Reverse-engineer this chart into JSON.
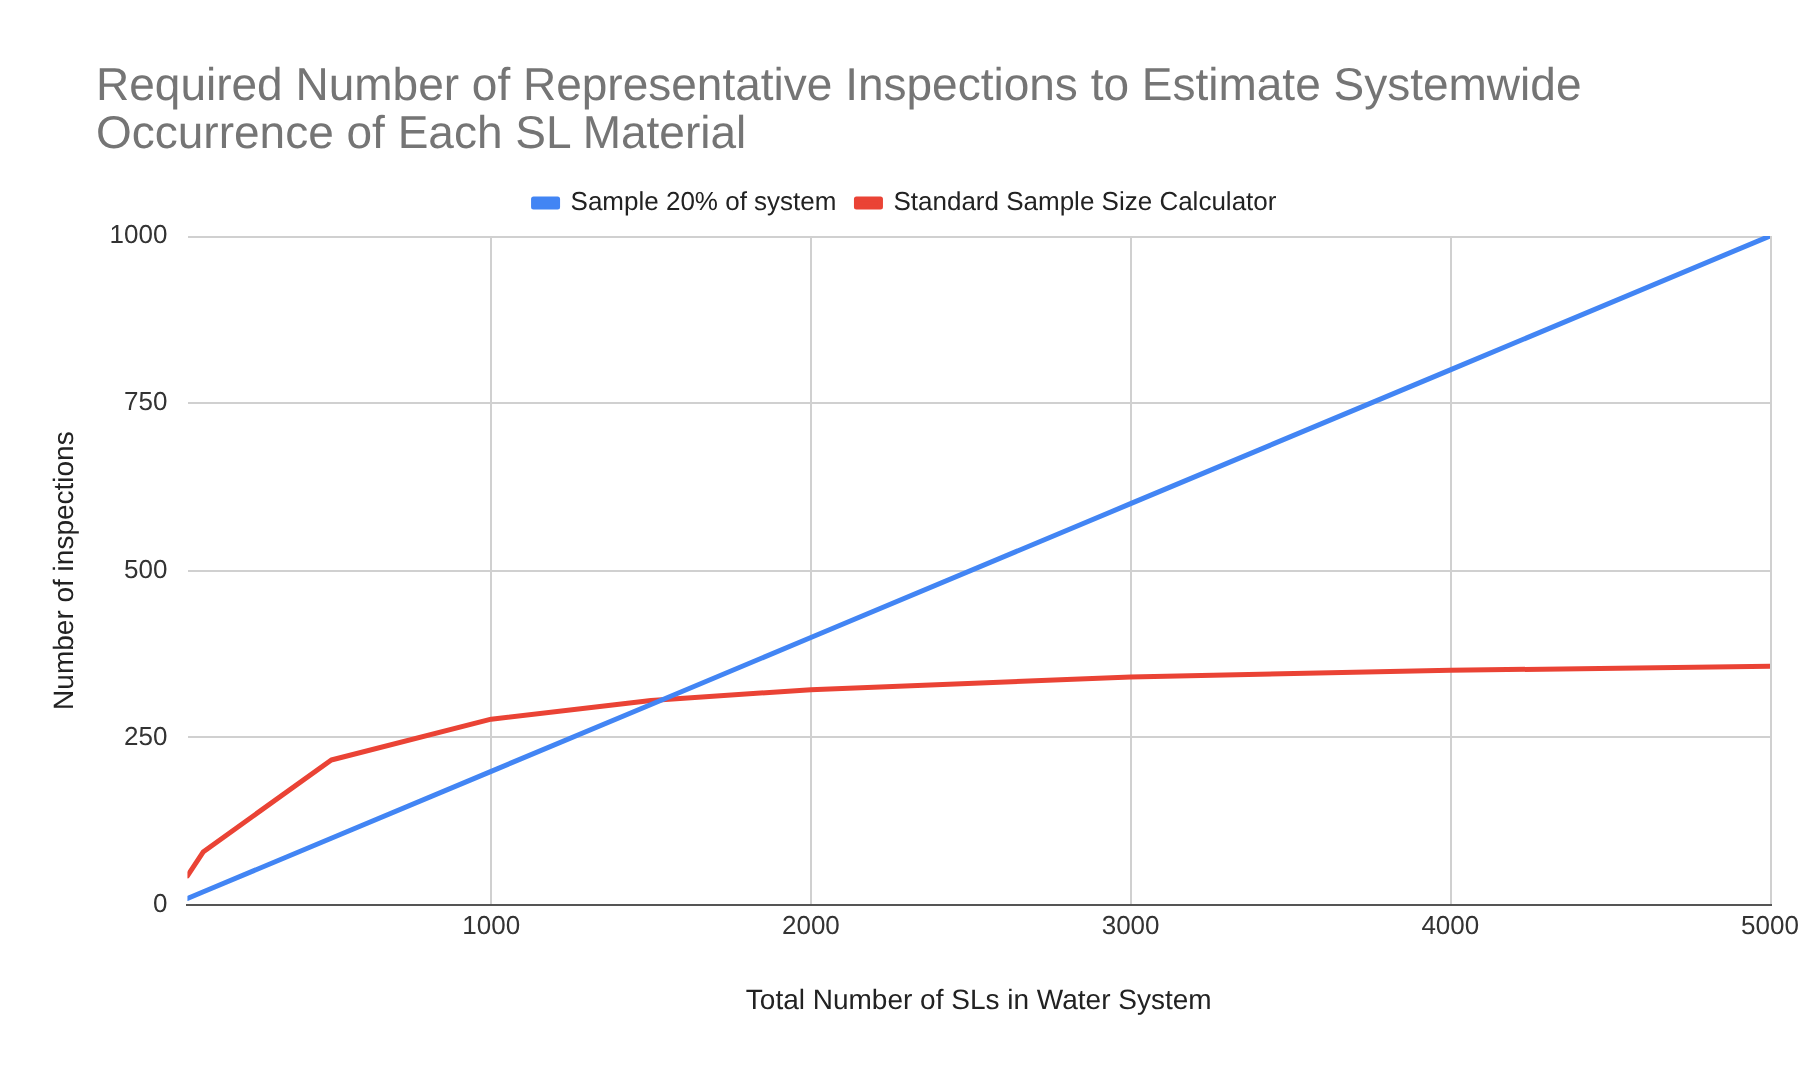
{
  "chart_data": {
    "type": "line",
    "title": "Required Number of Representative Inspections to Estimate Systemwide Occurrence of Each SL Material",
    "xlabel": "Total Number of SLs in Water System",
    "ylabel": "Number of inspections",
    "x": [
      50,
      100,
      500,
      1000,
      1500,
      2000,
      3000,
      4000,
      5000
    ],
    "series": [
      {
        "name": "Sample 20% of system",
        "color": "#4285f4",
        "values": [
          10,
          20,
          100,
          200,
          300,
          400,
          600,
          800,
          1000
        ]
      },
      {
        "name": "Standard Sample Size Calculator",
        "color": "#ea4335",
        "values": [
          44,
          80,
          217,
          278,
          306,
          322,
          341,
          351,
          357
        ]
      }
    ],
    "xlim": [
      50,
      5000
    ],
    "xticks": [
      1000,
      2000,
      3000,
      4000,
      5000
    ],
    "ylim": [
      0,
      1000
    ],
    "yticks": [
      0,
      250,
      500,
      750,
      1000
    ],
    "grid": true,
    "legend": "top",
    "marker": "none",
    "line_style": "solid"
  }
}
